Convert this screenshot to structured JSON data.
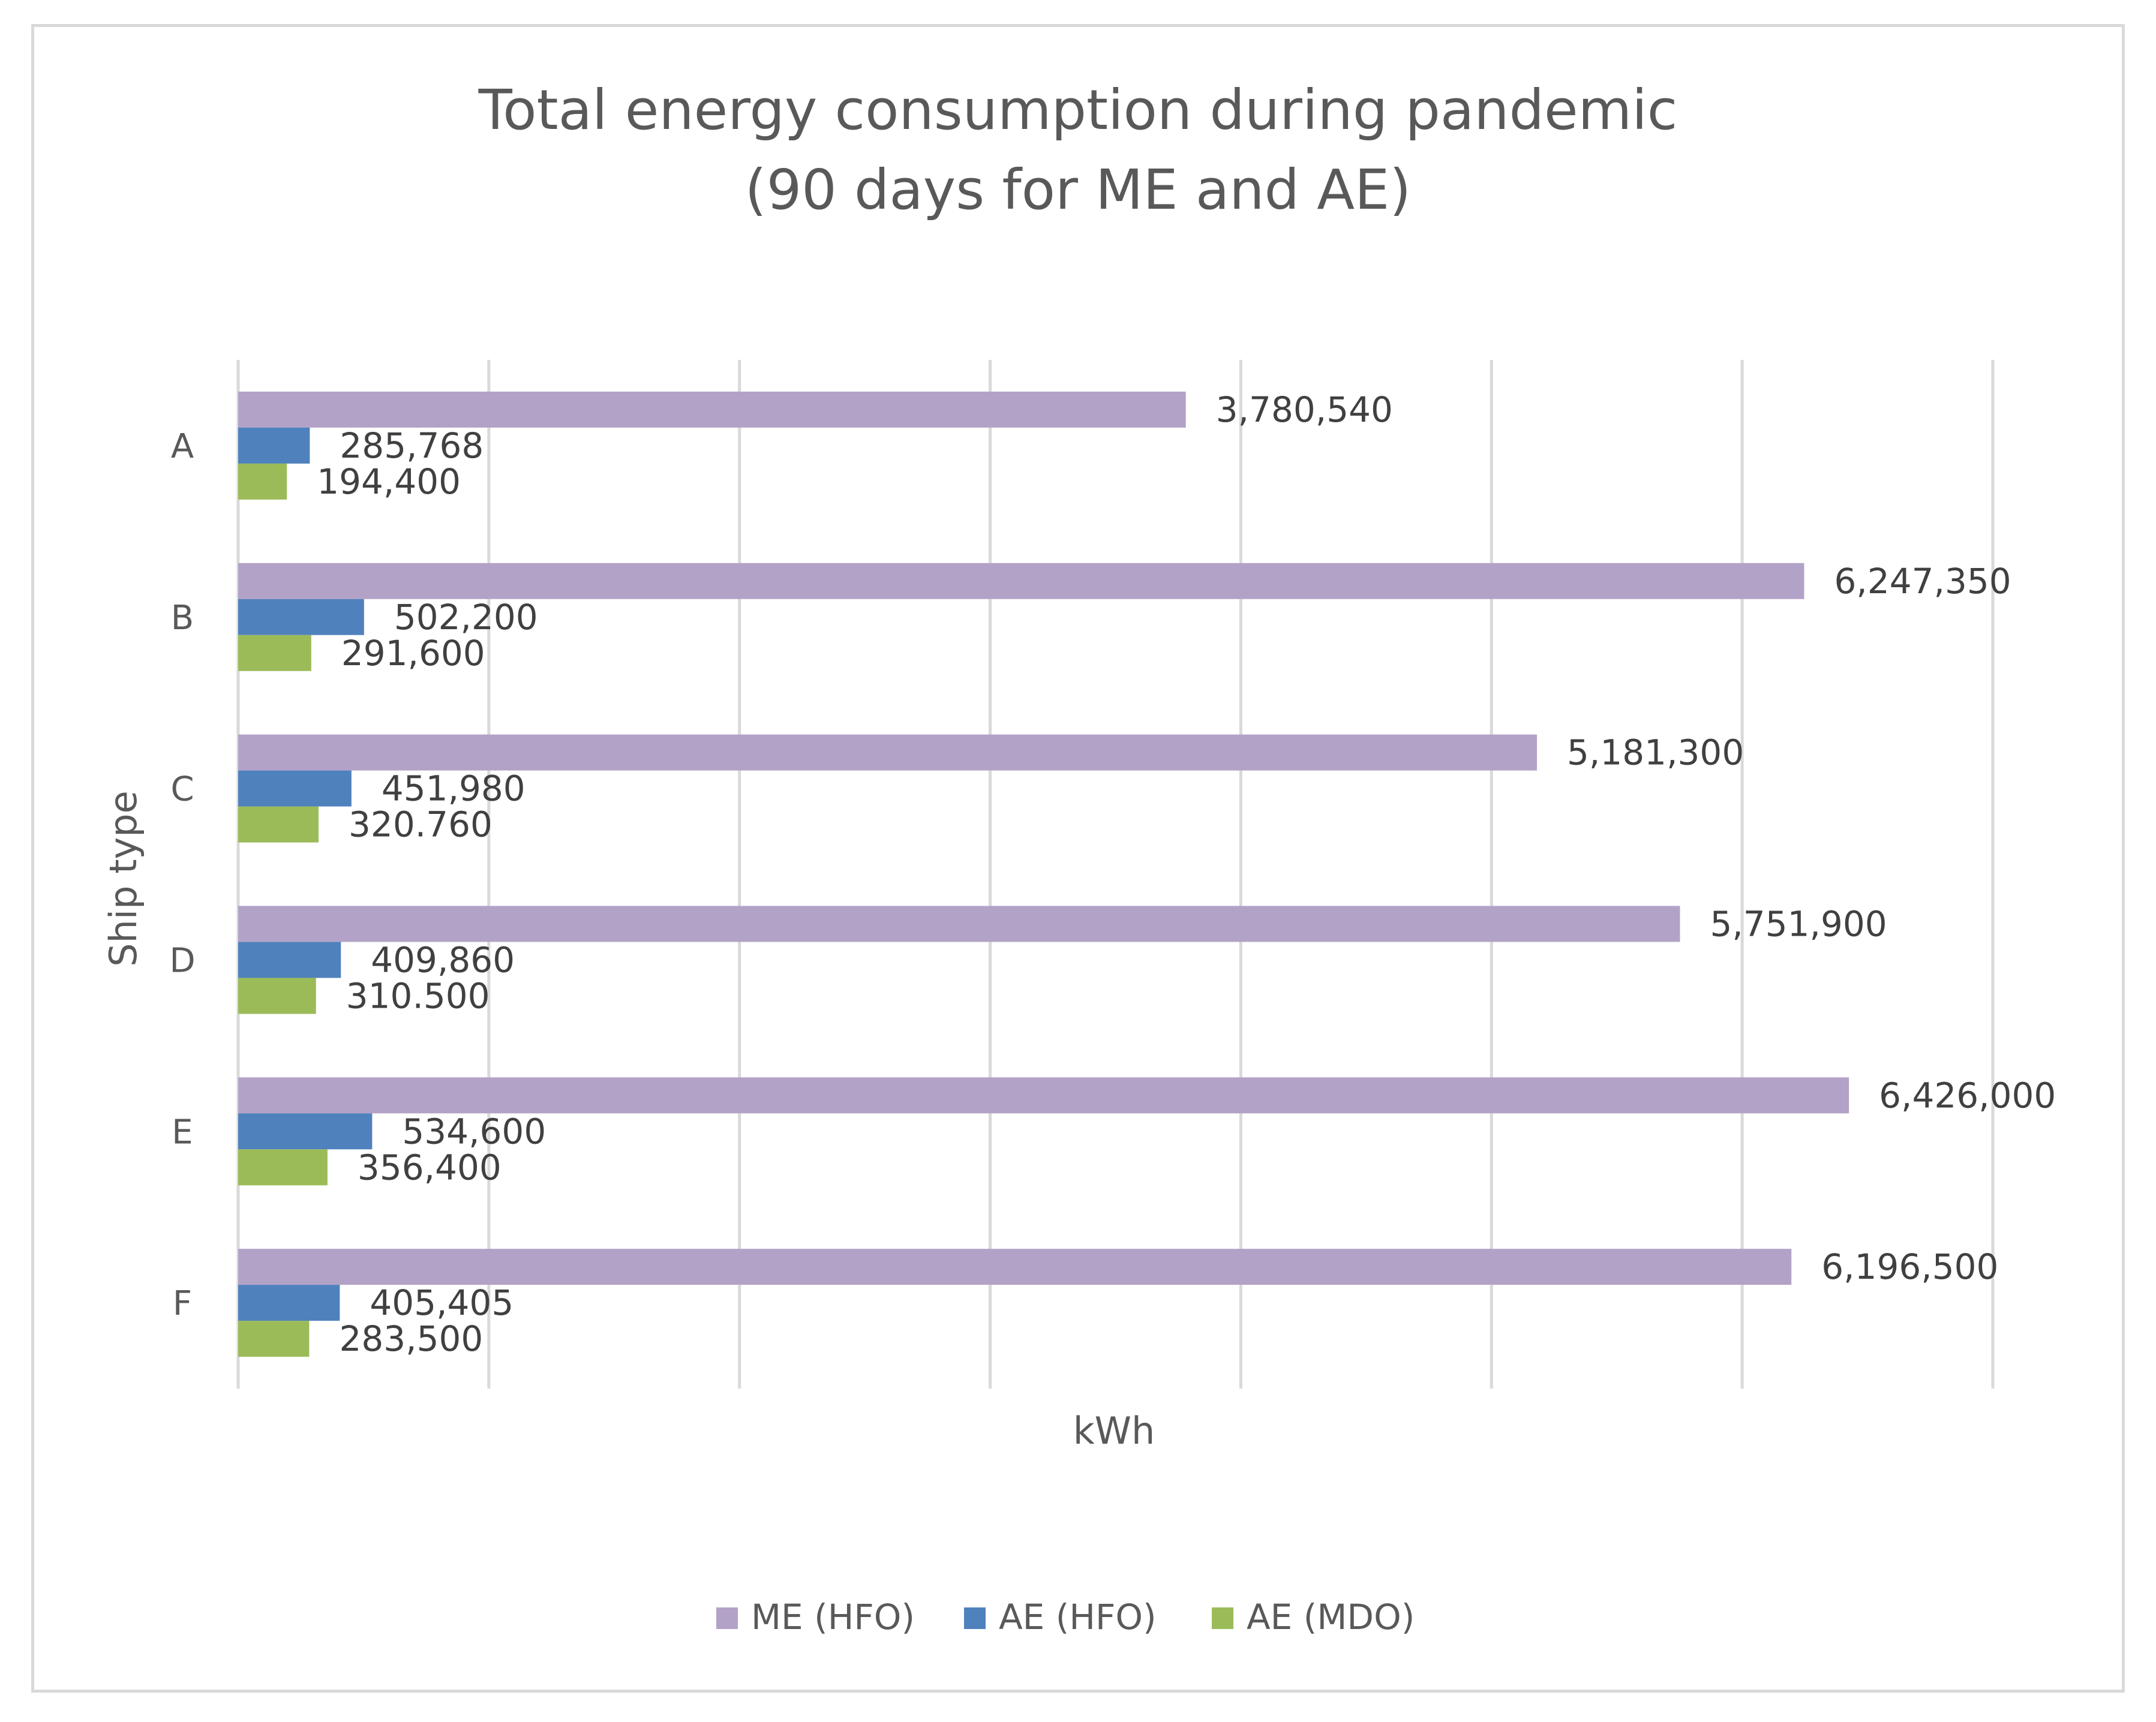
{
  "chart_data": {
    "type": "bar",
    "orientation": "horizontal",
    "title": [
      "Total energy consumption during pandemic",
      "(90 days for ME and AE)"
    ],
    "xlabel": "kWh",
    "ylabel": "Ship type",
    "xlim": [
      0,
      7000000
    ],
    "grid": true,
    "legend_position": "bottom",
    "categories": [
      "A",
      "B",
      "C",
      "D",
      "E",
      "F"
    ],
    "series": [
      {
        "name": "ME (HFO)",
        "color": "#b3a2c7",
        "values": [
          3780540,
          6247350,
          5181300,
          5751900,
          6426000,
          6196500
        ],
        "labels": [
          "3,780,540",
          "6,247,350",
          "5,181,300",
          "5,751,900",
          "6,426,000",
          "6,196,500"
        ]
      },
      {
        "name": "AE (HFO)",
        "color": "#4f81bd",
        "values": [
          285768,
          502200,
          451980,
          409860,
          534600,
          405405
        ],
        "labels": [
          "285,768",
          "502,200",
          "451,980",
          "409,860",
          "534,600",
          "405,405"
        ]
      },
      {
        "name": "AE (MDO)",
        "color": "#9bbb59",
        "values": [
          194400,
          291600,
          320760,
          310500,
          356400,
          283500
        ],
        "labels": [
          "194,400",
          "291,600",
          "320.760",
          "310.500",
          "356,400",
          "283,500"
        ]
      }
    ]
  }
}
